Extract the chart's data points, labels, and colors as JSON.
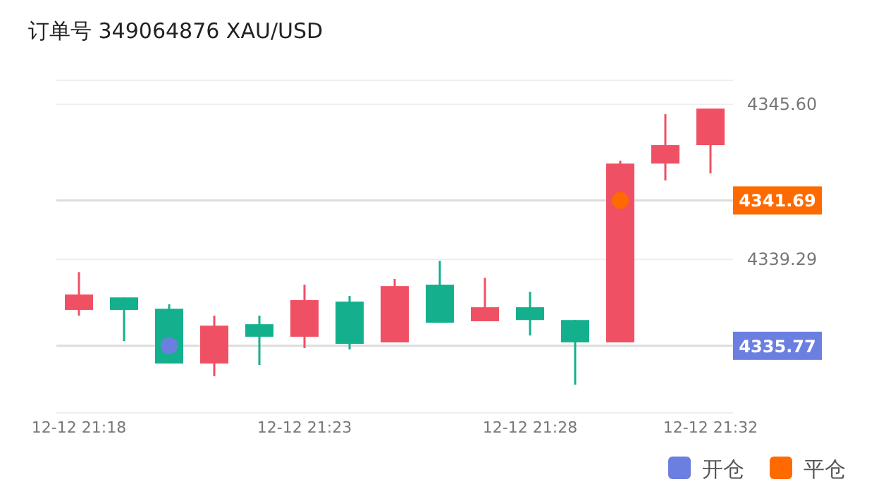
{
  "chart_data": {
    "type": "candlestick",
    "title": "订单号 349064876    XAU/USD",
    "categories": [
      "12-12 21:18",
      null,
      null,
      null,
      null,
      "12-12 21:23",
      null,
      null,
      null,
      null,
      "12-12 21:28",
      null,
      null,
      null,
      "12-12 21:32"
    ],
    "ohlc": [
      [
        4337.23,
        4338.77,
        4337.0,
        4337.86
      ],
      [
        4337.74,
        4337.74,
        4335.96,
        4337.23
      ],
      [
        4337.28,
        4337.46,
        4335.05,
        4335.05
      ],
      [
        4335.05,
        4337.0,
        4334.53,
        4336.59
      ],
      [
        4336.65,
        4337.0,
        4334.99,
        4336.14
      ],
      [
        4336.14,
        4338.26,
        4335.68,
        4337.63
      ],
      [
        4337.57,
        4337.8,
        4335.62,
        4335.85
      ],
      [
        4335.91,
        4338.49,
        4335.91,
        4338.2
      ],
      [
        4338.26,
        4339.23,
        4336.71,
        4336.71
      ],
      [
        4336.77,
        4338.54,
        4336.77,
        4337.34
      ],
      [
        4337.34,
        4337.97,
        4336.19,
        4336.82
      ],
      [
        4336.82,
        4336.82,
        4334.19,
        4335.91
      ],
      [
        4335.91,
        4343.31,
        4335.91,
        4343.19
      ],
      [
        4343.19,
        4345.2,
        4342.5,
        4343.94
      ],
      [
        4343.94,
        4345.43,
        4342.79,
        4345.43
      ]
    ],
    "colors": [
      "#ef5064",
      "#14b08e",
      "#14b08e",
      "#ef5064",
      "#14b08e",
      "#ef5064",
      "#14b08e",
      "#ef5064",
      "#14b08e",
      "#ef5064",
      "#14b08e",
      "#14b08e",
      "#ef5064",
      "#ef5064",
      "#ef5064"
    ],
    "ylim": [
      4333.04,
      4346.58
    ],
    "yticks": [
      {
        "value": 4345.6,
        "label": "4345.60"
      },
      {
        "value": 4339.29,
        "label": "4339.29"
      }
    ],
    "grid": "y",
    "ref_lines": [
      {
        "axis": "y",
        "value": 4341.69,
        "label": "4341.69"
      },
      {
        "axis": "y",
        "value": 4335.77,
        "label": "4335.77"
      }
    ],
    "series": [
      {
        "type": "scatter",
        "name": "开仓",
        "color": "#6b7fe0",
        "values": [
          null,
          null,
          4335.77,
          null,
          null,
          null,
          null,
          null,
          null,
          null,
          null,
          null,
          null,
          null,
          null
        ]
      },
      {
        "type": "scatter",
        "name": "平仓",
        "color": "#ff6a00",
        "values": [
          null,
          null,
          null,
          null,
          null,
          null,
          null,
          null,
          null,
          null,
          null,
          null,
          4341.69,
          null,
          null
        ]
      }
    ],
    "marker": "circle",
    "legend": "bottom right"
  }
}
